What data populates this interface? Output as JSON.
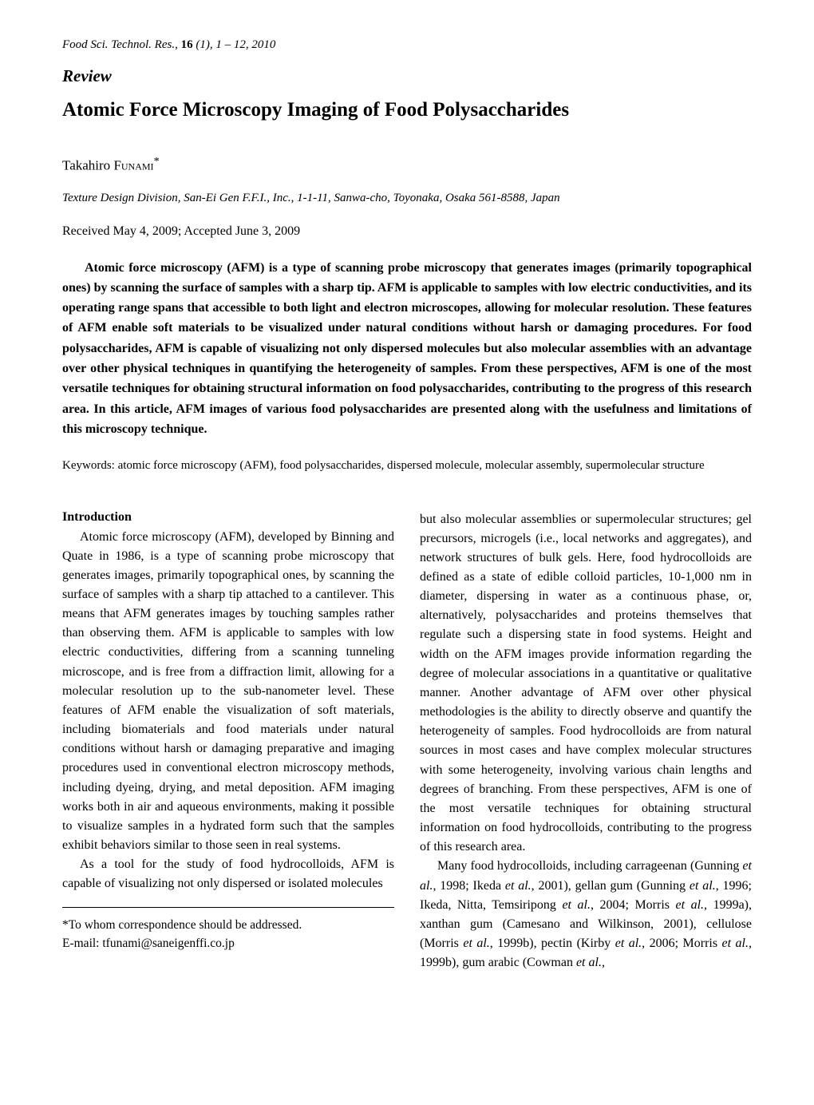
{
  "journal": {
    "name": "Food Sci. Technol. Res.",
    "volume": "16",
    "issue": "(1)",
    "pages": "1 – 12",
    "year": "2010"
  },
  "series": "Review",
  "title": "Atomic Force Microscopy Imaging of Food Polysaccharides",
  "author": {
    "first": "Takahiro",
    "surname": "Funami",
    "marker": "*"
  },
  "affiliation": "Texture Design Division, San-Ei Gen F.F.I., Inc., 1-1-11, Sanwa-cho, Toyonaka, Osaka 561-8588, Japan",
  "dates": "Received May 4, 2009; Accepted June 3, 2009",
  "abstract": "Atomic force microscopy (AFM) is a type of scanning probe microscopy that generates images (primarily topographical ones) by scanning the surface of samples with a sharp tip.  AFM is applicable to samples with low electric conductivities, and its operating range spans that accessible to both light and electron microscopes, allowing for molecular resolution.  These features of AFM enable soft materials to be visualized under natural conditions without harsh or damaging procedures.  For food polysaccharides, AFM is capable of visualizing not only dispersed molecules but also molecular assemblies with an advantage over other physical techniques in quantifying the heterogeneity of samples.  From these perspectives, AFM is one of the most versatile techniques for obtaining structural information on food polysaccharides, contributing to the progress of this research area.  In this article, AFM images of various food polysaccharides are presented along with the usefulness and limitations of this microscopy technique.",
  "keywords_label": "Keywords:",
  "keywords": " atomic force microscopy (AFM), food polysaccharides, dispersed molecule, molecular assembly, supermolecular structure",
  "intro_heading": "Introduction",
  "col1_p1": "Atomic force microscopy (AFM), developed by Binning and Quate in 1986, is a type of scanning probe microscopy that generates images, primarily topographical ones, by scanning the surface of samples with a sharp tip attached to a cantilever.  This means that AFM generates images by touching samples rather than observing them.  AFM is applicable to samples with low electric conductivities, differing from a scanning tunneling microscope, and is free from a diffraction limit, allowing for a molecular resolution up to the sub-nanometer level.  These features of AFM enable the visualization of soft materials, including biomaterials and food materials under natural conditions without harsh or damaging preparative and imaging procedures used in conventional electron microscopy methods, including dyeing, drying, and metal deposition.  AFM imaging works both in air and aqueous environments, making it possible to visualize samples in a hydrated form such that the samples exhibit behaviors similar to those seen in real systems.",
  "col1_p2": "As a tool for the study of food hydrocolloids, AFM is capable of visualizing not only dispersed or isolated molecules",
  "correspondence_line1": "*To whom correspondence should be addressed.",
  "correspondence_line2": "E-mail: tfunami@saneigenffi.co.jp",
  "col2_p1": "but also molecular assemblies or supermolecular structures; gel precursors, microgels (i.e., local networks and aggregates), and network structures of bulk gels.  Here, food hydrocolloids are defined as a state of edible colloid particles, 10-1,000 nm in diameter, dispersing in water as a continuous phase, or, alternatively, polysaccharides and proteins themselves that regulate such a dispersing state in food systems.  Height and width on the AFM images provide information regarding the degree of molecular associations in a quantitative or qualitative manner.  Another advantage of AFM over other physical methodologies is the ability to directly observe and quantify the heterogeneity of samples.  Food hydrocolloids are from natural sources in most cases and have complex molecular structures with some heterogeneity, involving various chain lengths and degrees of branching.  From these perspectives, AFM is one of the most versatile techniques for obtaining structural information on food hydrocolloids, contributing to the progress of this research area.",
  "col2_p2_pre": "Many food hydrocolloids, including carrageenan (Gunning ",
  "col2_p2_etal1": "et al.",
  "col2_p2_seg1": ", 1998; Ikeda ",
  "col2_p2_etal2": "et al.",
  "col2_p2_seg2": ", 2001), gellan gum (Gunning ",
  "col2_p2_etal3": "et al.",
  "col2_p2_seg3": ", 1996; Ikeda, Nitta, Temsiripong ",
  "col2_p2_etal4": "et al.",
  "col2_p2_seg4": ", 2004; Morris ",
  "col2_p2_etal5": "et al.",
  "col2_p2_seg5": ", 1999a), xanthan gum (Camesano and Wilkinson, 2001), cellulose (Morris ",
  "col2_p2_etal6": "et al.",
  "col2_p2_seg6": ", 1999b), pectin (Kirby ",
  "col2_p2_etal7": "et al.",
  "col2_p2_seg7": ", 2006; Morris ",
  "col2_p2_etal8": "et al.",
  "col2_p2_seg8": ", 1999b), gum arabic (Cowman ",
  "col2_p2_etal9": "et al.",
  "col2_p2_seg9": ","
}
